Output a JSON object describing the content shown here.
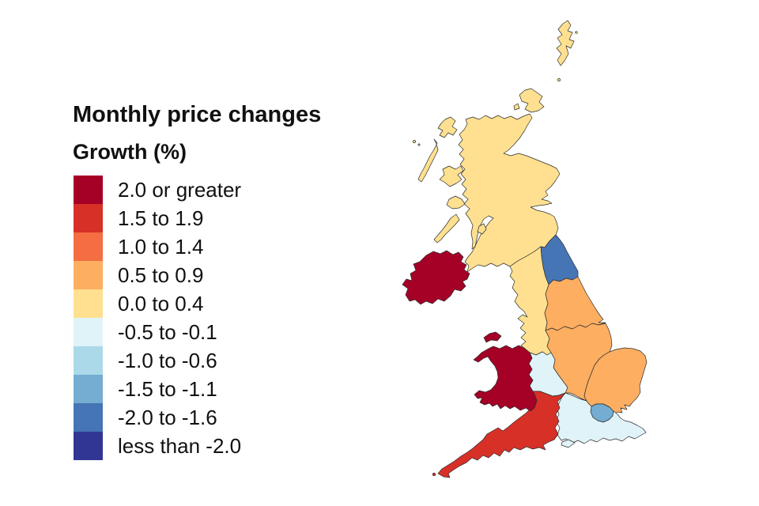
{
  "title": "Monthly price changes",
  "legend_title": "Growth (%)",
  "legend": [
    {
      "label": "2.0 or greater",
      "color": "#a50026"
    },
    {
      "label": "1.5 to 1.9",
      "color": "#d73027"
    },
    {
      "label": "1.0 to 1.4",
      "color": "#f46d43"
    },
    {
      "label": "0.5 to 0.9",
      "color": "#fdae61"
    },
    {
      "label": "0.0 to 0.4",
      "color": "#fee090"
    },
    {
      "label": "-0.5 to -0.1",
      "color": "#e0f3f8"
    },
    {
      "label": "-1.0 to -0.6",
      "color": "#abd9e9"
    },
    {
      "label": "-1.5 to -1.1",
      "color": "#74add1"
    },
    {
      "label": "-2.0 to -1.6",
      "color": "#4575b4"
    },
    {
      "label": "less than -2.0",
      "color": "#313695"
    }
  ],
  "regions": [
    {
      "id": "scotland",
      "name": "Scotland",
      "category": "0.0 to 0.4",
      "color": "#fee090"
    },
    {
      "id": "northern-ireland",
      "name": "Northern Ireland",
      "category": "2.0 or greater",
      "color": "#a50026"
    },
    {
      "id": "north-east",
      "name": "North East",
      "category": "-2.0 to -1.6",
      "color": "#4575b4"
    },
    {
      "id": "north-west",
      "name": "North West",
      "category": "0.0 to 0.4",
      "color": "#fee090"
    },
    {
      "id": "yorkshire",
      "name": "Yorkshire and The Humber",
      "category": "0.5 to 0.9",
      "color": "#fdae61"
    },
    {
      "id": "east-midlands",
      "name": "East Midlands",
      "category": "0.5 to 0.9",
      "color": "#fdae61"
    },
    {
      "id": "west-midlands",
      "name": "West Midlands",
      "category": "-0.5 to -0.1",
      "color": "#e0f3f8"
    },
    {
      "id": "east-of-england",
      "name": "East of England",
      "category": "0.5 to 0.9",
      "color": "#fdae61"
    },
    {
      "id": "london",
      "name": "London",
      "category": "-1.5 to -1.1",
      "color": "#74add1"
    },
    {
      "id": "south-east",
      "name": "South East",
      "category": "-0.5 to -0.1",
      "color": "#e0f3f8"
    },
    {
      "id": "south-west",
      "name": "South West",
      "category": "1.5 to 1.9",
      "color": "#d73027"
    },
    {
      "id": "wales",
      "name": "Wales",
      "category": "2.0 or greater",
      "color": "#a50026"
    }
  ],
  "chart_data": {
    "type": "choropleth",
    "title": "Monthly price changes",
    "legend_title": "Growth (%)",
    "bins": [
      "2.0 or greater",
      "1.5 to 1.9",
      "1.0 to 1.4",
      "0.5 to 0.9",
      "0.0 to 0.4",
      "-0.5 to -0.1",
      "-1.0 to -0.6",
      "-1.5 to -1.1",
      "-2.0 to -1.6",
      "less than -2.0"
    ],
    "regions": [
      {
        "name": "Scotland",
        "growth_pct_bin": "0.0 to 0.4"
      },
      {
        "name": "Northern Ireland",
        "growth_pct_bin": "2.0 or greater"
      },
      {
        "name": "North East",
        "growth_pct_bin": "-2.0 to -1.6"
      },
      {
        "name": "North West",
        "growth_pct_bin": "0.0 to 0.4"
      },
      {
        "name": "Yorkshire and The Humber",
        "growth_pct_bin": "0.5 to 0.9"
      },
      {
        "name": "East Midlands",
        "growth_pct_bin": "0.5 to 0.9"
      },
      {
        "name": "West Midlands",
        "growth_pct_bin": "-0.5 to -0.1"
      },
      {
        "name": "East of England",
        "growth_pct_bin": "0.5 to 0.9"
      },
      {
        "name": "London",
        "growth_pct_bin": "-1.5 to -1.1"
      },
      {
        "name": "South East",
        "growth_pct_bin": "-0.5 to -0.1"
      },
      {
        "name": "South West",
        "growth_pct_bin": "1.5 to 1.9"
      },
      {
        "name": "Wales",
        "growth_pct_bin": "2.0 or greater"
      }
    ]
  }
}
